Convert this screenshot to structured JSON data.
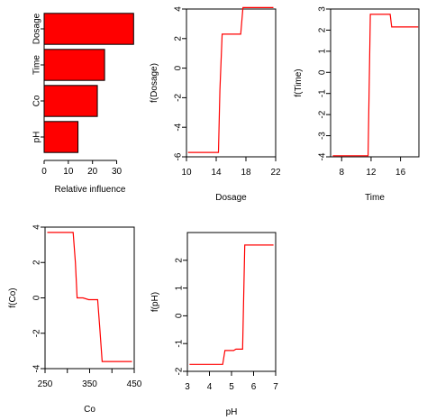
{
  "chart_data": [
    {
      "type": "bar",
      "orientation": "horizontal",
      "title": "",
      "xlabel": "Relative influence",
      "ylabel": "",
      "categories": [
        "Dosage",
        "Time",
        "Co",
        "pH"
      ],
      "values": [
        37,
        25,
        22,
        14
      ],
      "xlim": [
        0,
        38
      ],
      "xticks": [
        0,
        10,
        20,
        30
      ],
      "bar_color": "#ff0000",
      "grid": false
    },
    {
      "type": "line",
      "title": "",
      "xlabel": "Dosage",
      "ylabel": "f(Dosage)",
      "x": [
        10.2,
        14.3,
        14.5,
        14.8,
        17.3,
        17.6,
        21.7
      ],
      "y": [
        -5.7,
        -5.7,
        -1.5,
        2.3,
        2.3,
        4.1,
        4.1
      ],
      "xlim": [
        10,
        22
      ],
      "ylim": [
        -6,
        4
      ],
      "xticks": [
        10,
        14,
        18,
        22
      ],
      "yticks": [
        -6,
        -4,
        -2,
        0,
        2,
        4
      ],
      "line_color": "#ff0000",
      "grid": false
    },
    {
      "type": "line",
      "title": "",
      "xlabel": "Time",
      "ylabel": "f(Time)",
      "x": [
        6.8,
        11.6,
        11.9,
        14.6,
        14.8,
        18.4
      ],
      "y": [
        -3.95,
        -3.95,
        2.75,
        2.75,
        2.15,
        2.15
      ],
      "xlim": [
        6.5,
        18.5
      ],
      "ylim": [
        -4,
        3
      ],
      "xticks": [
        8,
        12,
        16
      ],
      "yticks": [
        -4,
        -3,
        -2,
        -1,
        0,
        1,
        2,
        3
      ],
      "line_color": "#ff0000",
      "grid": false
    },
    {
      "type": "line",
      "title": "",
      "xlabel": "Co",
      "ylabel": "f(Co)",
      "x": [
        255,
        313,
        318,
        322,
        335,
        348,
        368,
        373,
        378,
        445
      ],
      "y": [
        3.7,
        3.7,
        2.0,
        0.0,
        0.0,
        -0.1,
        -0.1,
        -1.8,
        -3.6,
        -3.6
      ],
      "xlim": [
        250,
        450
      ],
      "ylim": [
        -4,
        4
      ],
      "xticks": [
        250,
        300,
        350,
        400,
        450
      ],
      "xticklabels": [
        "250",
        "",
        "350",
        "",
        "450"
      ],
      "yticks": [
        -4,
        -2,
        0,
        2,
        4
      ],
      "line_color": "#ff0000",
      "grid": false
    },
    {
      "type": "line",
      "title": "",
      "xlabel": "pH",
      "ylabel": "f(pH)",
      "x": [
        3.1,
        4.6,
        4.7,
        5.1,
        5.2,
        5.5,
        5.6,
        6.9
      ],
      "y": [
        -1.75,
        -1.75,
        -1.25,
        -1.25,
        -1.2,
        -1.2,
        2.55,
        2.55
      ],
      "xlim": [
        3,
        7
      ],
      "ylim": [
        -2,
        3
      ],
      "xticks": [
        3,
        4,
        5,
        6,
        7
      ],
      "yticks": [
        -2,
        -1,
        0,
        1,
        2
      ],
      "line_color": "#ff0000",
      "grid": false
    }
  ]
}
